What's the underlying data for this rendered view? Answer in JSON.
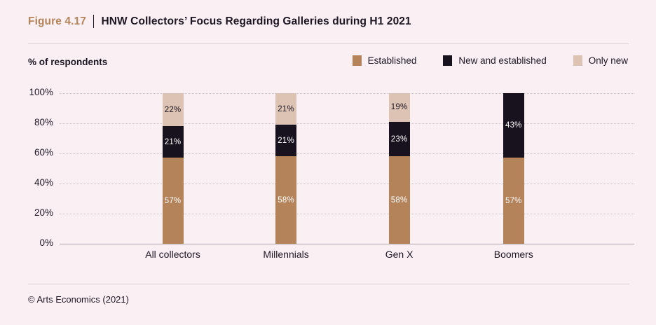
{
  "figure": {
    "label": "Figure 4.17",
    "title": "HNW Collectors’ Focus Regarding Galleries during H1 2021"
  },
  "y_axis_label": "% of respondents",
  "footer": {
    "credit": "© Arts Economics (2021)"
  },
  "colors": {
    "background": "#faf0f4",
    "accent_copper": "#b5835a",
    "series_established": "#b5835a",
    "series_new_and_established": "#17121d",
    "series_only_new": "#ddc3b3",
    "text_dark": "#1c1622"
  },
  "chart_data": {
    "type": "bar",
    "stacked": true,
    "title": "HNW Collectors’ Focus Regarding Galleries during H1 2021",
    "ylabel": "% of respondents",
    "xlabel": "",
    "categories": [
      "All collectors",
      "Millennials",
      "Gen X",
      "Boomers"
    ],
    "series": [
      {
        "name": "Established",
        "color": "#b5835a",
        "label_color": "#ffffff",
        "values": [
          57,
          58,
          58,
          57
        ]
      },
      {
        "name": "New and established",
        "color": "#17121d",
        "label_color": "#ffffff",
        "values": [
          21,
          21,
          23,
          43
        ]
      },
      {
        "name": "Only new",
        "color": "#ddc3b3",
        "label_color": "#1c1622",
        "values": [
          22,
          21,
          19,
          0
        ]
      }
    ],
    "ylim": [
      0,
      100
    ],
    "y_ticks": [
      0,
      20,
      40,
      60,
      80,
      100
    ],
    "value_suffix": "%",
    "grid": "horizontal-dotted",
    "legend_position": "top-right"
  }
}
